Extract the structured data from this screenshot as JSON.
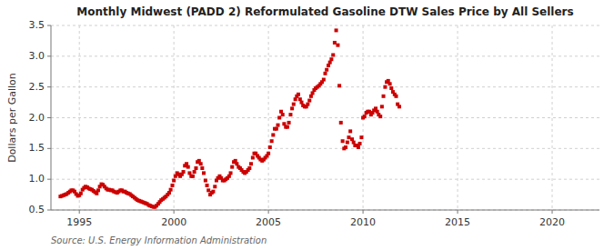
{
  "chart_data": {
    "type": "scatter",
    "title": "Monthly Midwest (PADD 2) Reformulated Gasoline DTW Sales Price by All Sellers",
    "ylabel": "Dollars per Gallon",
    "annotations": [
      "Source: U.S. Energy Information Administration"
    ],
    "color": "#cc0000",
    "marker": "square",
    "grid": true,
    "xlim": [
      1993.5,
      2022.5
    ],
    "ylim": [
      0.5,
      3.5
    ],
    "xticks": [
      1995,
      2000,
      2005,
      2010,
      2015,
      2020
    ],
    "yticks": [
      0.5,
      {
        "value": 1.0,
        "label": "1.0"
      },
      1.5,
      {
        "value": 2.0,
        "label": "2.0"
      },
      2.5,
      {
        "value": 3.0,
        "label": "3.0"
      },
      3.5
    ],
    "x": [
      1994.0,
      1994.08,
      1994.17,
      1994.25,
      1994.33,
      1994.42,
      1994.5,
      1994.58,
      1994.67,
      1994.75,
      1994.83,
      1994.92,
      1995.0,
      1995.08,
      1995.17,
      1995.25,
      1995.33,
      1995.42,
      1995.5,
      1995.58,
      1995.67,
      1995.75,
      1995.83,
      1995.92,
      1996.0,
      1996.08,
      1996.17,
      1996.25,
      1996.33,
      1996.42,
      1996.5,
      1996.58,
      1996.67,
      1996.75,
      1996.83,
      1996.92,
      1997.0,
      1997.08,
      1997.17,
      1997.25,
      1997.33,
      1997.42,
      1997.5,
      1997.58,
      1997.67,
      1997.75,
      1997.83,
      1997.92,
      1998.0,
      1998.08,
      1998.17,
      1998.25,
      1998.33,
      1998.42,
      1998.5,
      1998.58,
      1998.67,
      1998.75,
      1998.83,
      1998.92,
      1999.0,
      1999.08,
      1999.17,
      1999.25,
      1999.33,
      1999.42,
      1999.5,
      1999.58,
      1999.67,
      1999.75,
      1999.83,
      1999.92,
      2000.0,
      2000.08,
      2000.17,
      2000.25,
      2000.33,
      2000.42,
      2000.5,
      2000.58,
      2000.67,
      2000.75,
      2000.83,
      2000.92,
      2001.0,
      2001.08,
      2001.17,
      2001.25,
      2001.33,
      2001.42,
      2001.5,
      2001.58,
      2001.67,
      2001.75,
      2001.83,
      2001.92,
      2002.0,
      2002.08,
      2002.17,
      2002.25,
      2002.33,
      2002.42,
      2002.5,
      2002.58,
      2002.67,
      2002.75,
      2002.83,
      2002.92,
      2003.0,
      2003.08,
      2003.17,
      2003.25,
      2003.33,
      2003.42,
      2003.5,
      2003.58,
      2003.67,
      2003.75,
      2003.83,
      2003.92,
      2004.0,
      2004.08,
      2004.17,
      2004.25,
      2004.33,
      2004.42,
      2004.5,
      2004.58,
      2004.67,
      2004.75,
      2004.83,
      2004.92,
      2005.0,
      2005.08,
      2005.17,
      2005.25,
      2005.33,
      2005.42,
      2005.5,
      2005.58,
      2005.67,
      2005.75,
      2005.83,
      2005.92,
      2006.0,
      2006.08,
      2006.17,
      2006.25,
      2006.33,
      2006.42,
      2006.5,
      2006.58,
      2006.67,
      2006.75,
      2006.83,
      2006.92,
      2007.0,
      2007.08,
      2007.17,
      2007.25,
      2007.33,
      2007.42,
      2007.5,
      2007.58,
      2007.67,
      2007.75,
      2007.83,
      2007.92,
      2008.0,
      2008.08,
      2008.17,
      2008.25,
      2008.33,
      2008.42,
      2008.5,
      2008.58,
      2008.67,
      2008.75,
      2008.83,
      2008.92,
      2009.0,
      2009.08,
      2009.17,
      2009.25,
      2009.33,
      2009.42,
      2009.5,
      2009.58,
      2009.67,
      2009.75,
      2009.83,
      2009.92,
      2010.0,
      2010.08,
      2010.17,
      2010.25,
      2010.33,
      2010.42,
      2010.5,
      2010.58,
      2010.67,
      2010.75,
      2010.83,
      2010.92,
      2011.0,
      2011.08,
      2011.17,
      2011.25,
      2011.33,
      2011.42,
      2011.5,
      2011.58,
      2011.67,
      2011.75,
      2011.83,
      2011.92
    ],
    "values": [
      0.72,
      0.73,
      0.74,
      0.75,
      0.76,
      0.78,
      0.8,
      0.82,
      0.82,
      0.8,
      0.76,
      0.73,
      0.74,
      0.77,
      0.83,
      0.86,
      0.88,
      0.87,
      0.85,
      0.84,
      0.83,
      0.81,
      0.79,
      0.77,
      0.82,
      0.88,
      0.92,
      0.91,
      0.88,
      0.85,
      0.83,
      0.83,
      0.82,
      0.82,
      0.8,
      0.79,
      0.78,
      0.8,
      0.82,
      0.82,
      0.8,
      0.8,
      0.78,
      0.77,
      0.76,
      0.74,
      0.72,
      0.7,
      0.68,
      0.66,
      0.65,
      0.64,
      0.63,
      0.62,
      0.61,
      0.6,
      0.58,
      0.57,
      0.56,
      0.55,
      0.55,
      0.57,
      0.6,
      0.63,
      0.66,
      0.68,
      0.7,
      0.72,
      0.75,
      0.78,
      0.83,
      0.9,
      0.98,
      1.05,
      1.1,
      1.08,
      1.05,
      1.08,
      1.12,
      1.22,
      1.25,
      1.2,
      1.1,
      1.05,
      1.05,
      1.12,
      1.18,
      1.28,
      1.3,
      1.25,
      1.18,
      1.1,
      0.98,
      0.9,
      0.82,
      0.75,
      0.78,
      0.8,
      0.88,
      0.98,
      1.02,
      1.05,
      1.02,
      0.98,
      0.98,
      1.0,
      1.02,
      1.05,
      1.1,
      1.2,
      1.28,
      1.3,
      1.25,
      1.2,
      1.18,
      1.15,
      1.12,
      1.1,
      1.12,
      1.15,
      1.18,
      1.25,
      1.35,
      1.42,
      1.42,
      1.38,
      1.35,
      1.32,
      1.3,
      1.32,
      1.35,
      1.38,
      1.42,
      1.52,
      1.62,
      1.72,
      1.82,
      1.82,
      1.88,
      2.0,
      2.1,
      2.05,
      1.9,
      1.85,
      1.85,
      1.92,
      2.05,
      2.15,
      2.22,
      2.3,
      2.35,
      2.38,
      2.3,
      2.25,
      2.2,
      2.18,
      2.18,
      2.22,
      2.28,
      2.35,
      2.4,
      2.45,
      2.48,
      2.5,
      2.52,
      2.55,
      2.58,
      2.62,
      2.72,
      2.78,
      2.85,
      2.9,
      2.95,
      3.02,
      3.22,
      3.42,
      3.18,
      2.52,
      1.92,
      1.62,
      1.5,
      1.52,
      1.6,
      1.68,
      1.78,
      1.65,
      1.6,
      1.55,
      1.55,
      1.52,
      1.58,
      1.68,
      2.0,
      2.02,
      2.08,
      2.1,
      2.1,
      2.05,
      2.08,
      2.12,
      2.15,
      2.1,
      2.05,
      2.02,
      2.18,
      2.35,
      2.5,
      2.58,
      2.6,
      2.55,
      2.48,
      2.42,
      2.38,
      2.35,
      2.22,
      2.18
    ]
  }
}
